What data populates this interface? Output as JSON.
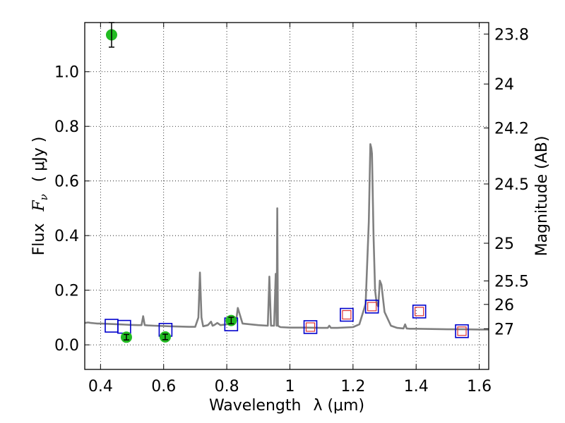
{
  "chart_data": {
    "type": "scatter",
    "xlabel": "Wavelength",
    "xlabel_symbol": "λ (μm)",
    "ylabel": "Flux",
    "ylabel_symbol": "F",
    "ylabel_sub": "ν",
    "ylabel_units": "( μJy )",
    "y2label": "Magnitude (AB)",
    "xlim": [
      0.35,
      1.63
    ],
    "ylim": [
      -0.09,
      1.18
    ],
    "grid": true,
    "x_ticks": [
      {
        "value": 0.4,
        "label": "0.4"
      },
      {
        "value": 0.6,
        "label": "0.6"
      },
      {
        "value": 0.8,
        "label": "0.8"
      },
      {
        "value": 1.0,
        "label": "1"
      },
      {
        "value": 1.2,
        "label": "1.2"
      },
      {
        "value": 1.4,
        "label": "1.4"
      },
      {
        "value": 1.6,
        "label": "1.6"
      }
    ],
    "y_ticks": [
      {
        "value": 0.0,
        "label": "0.0"
      },
      {
        "value": 0.2,
        "label": "0.2"
      },
      {
        "value": 0.4,
        "label": "0.4"
      },
      {
        "value": 0.6,
        "label": "0.6"
      },
      {
        "value": 0.8,
        "label": "0.8"
      },
      {
        "value": 1.0,
        "label": "1.0"
      }
    ],
    "y2_ticks": [
      {
        "flux": 1.138,
        "label": "23.8"
      },
      {
        "flux": 0.955,
        "label": "24"
      },
      {
        "flux": 0.794,
        "label": "24.2"
      },
      {
        "flux": 0.589,
        "label": "24.5"
      },
      {
        "flux": 0.372,
        "label": "25"
      },
      {
        "flux": 0.234,
        "label": "25.5"
      },
      {
        "flux": 0.148,
        "label": "26"
      },
      {
        "flux": 0.059,
        "label": "27"
      }
    ],
    "colors": {
      "model": "#808080",
      "observed": "#22bb22",
      "model_phot": "#0000cc",
      "model_phot_inner": "#dd3333"
    },
    "series": [
      {
        "kind": "model-spectrum",
        "x": [
          0.35,
          0.36,
          0.37,
          0.38,
          0.39,
          0.4,
          0.42,
          0.44,
          0.46,
          0.48,
          0.5,
          0.52,
          0.53,
          0.535,
          0.54,
          0.55,
          0.57,
          0.6,
          0.62,
          0.65,
          0.68,
          0.7,
          0.71,
          0.715,
          0.72,
          0.725,
          0.74,
          0.75,
          0.755,
          0.76,
          0.77,
          0.78,
          0.8,
          0.81,
          0.82,
          0.825,
          0.83,
          0.835,
          0.85,
          0.9,
          0.93,
          0.935,
          0.94,
          0.95,
          0.955,
          0.958,
          0.96,
          0.962,
          0.965,
          0.97,
          1.0,
          1.05,
          1.1,
          1.12,
          1.125,
          1.13,
          1.15,
          1.2,
          1.22,
          1.24,
          1.25,
          1.255,
          1.258,
          1.26,
          1.265,
          1.27,
          1.275,
          1.28,
          1.285,
          1.29,
          1.3,
          1.32,
          1.34,
          1.36,
          1.365,
          1.37,
          1.38,
          1.4,
          1.45,
          1.5,
          1.55,
          1.6,
          1.63
        ],
        "y": [
          0.08,
          0.082,
          0.08,
          0.079,
          0.078,
          0.078,
          0.077,
          0.076,
          0.075,
          0.074,
          0.073,
          0.072,
          0.072,
          0.105,
          0.072,
          0.071,
          0.07,
          0.069,
          0.068,
          0.067,
          0.066,
          0.066,
          0.1,
          0.265,
          0.1,
          0.068,
          0.072,
          0.085,
          0.07,
          0.072,
          0.08,
          0.072,
          0.075,
          0.079,
          0.085,
          0.084,
          0.09,
          0.135,
          0.078,
          0.072,
          0.07,
          0.25,
          0.07,
          0.07,
          0.26,
          0.07,
          0.5,
          0.07,
          0.068,
          0.065,
          0.063,
          0.063,
          0.062,
          0.062,
          0.07,
          0.062,
          0.062,
          0.065,
          0.075,
          0.15,
          0.45,
          0.735,
          0.72,
          0.7,
          0.4,
          0.2,
          0.15,
          0.14,
          0.235,
          0.22,
          0.12,
          0.07,
          0.062,
          0.06,
          0.075,
          0.06,
          0.059,
          0.059,
          0.058,
          0.057,
          0.057,
          0.056,
          0.056
        ]
      },
      {
        "kind": "observed-photometry",
        "x": [
          0.435,
          0.482,
          0.605,
          0.814
        ],
        "y": [
          1.135,
          0.028,
          0.029,
          0.089
        ],
        "yerr": [
          0.045,
          0.01,
          0.01,
          0.012
        ]
      },
      {
        "kind": "model-photometry",
        "x": [
          0.435,
          0.475,
          0.606,
          0.814,
          1.065,
          1.18,
          1.26,
          1.41,
          1.545
        ],
        "y": [
          0.07,
          0.066,
          0.055,
          0.075,
          0.065,
          0.11,
          0.14,
          0.122,
          0.05
        ]
      }
    ]
  }
}
